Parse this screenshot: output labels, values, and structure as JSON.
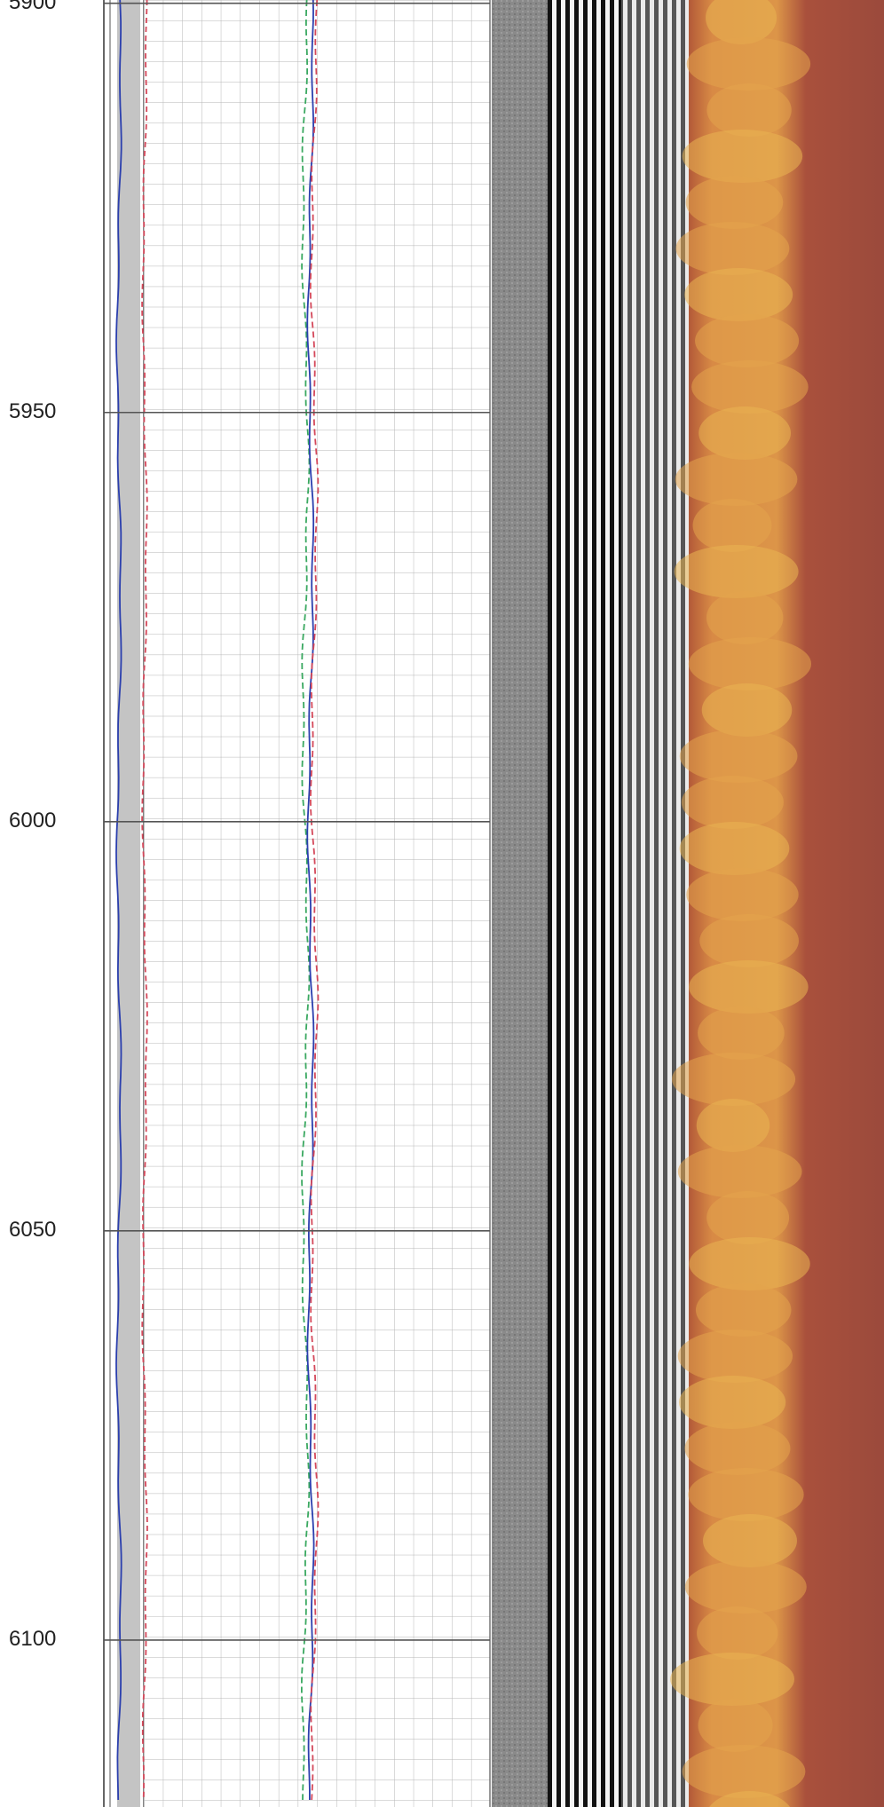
{
  "chart_data": {
    "type": "well-log",
    "ylim": [
      5899.6,
      6120.4
    ],
    "yticks": [
      5900,
      5950,
      6000,
      6050,
      6100
    ],
    "grid": true
  }
}
